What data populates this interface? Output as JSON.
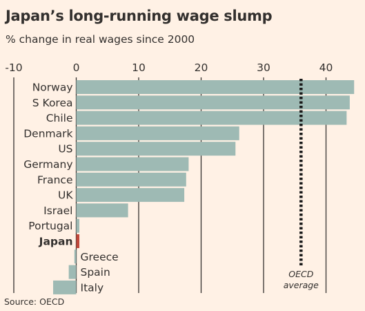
{
  "chart_data": {
    "type": "bar",
    "orientation": "horizontal",
    "title": "Japan’s long-running wage slump",
    "subtitle": "% change in real wages since 2000",
    "source": "Source: OECD",
    "categories": [
      "Norway",
      "S Korea",
      "Chile",
      "Denmark",
      "US",
      "Germany",
      "France",
      "UK",
      "Israel",
      "Portugal",
      "Japan",
      "Greece",
      "Spain",
      "Italy"
    ],
    "values": [
      44.5,
      43.8,
      43.3,
      26.1,
      25.5,
      18.0,
      17.6,
      17.3,
      8.3,
      0.5,
      -0.5,
      -0.3,
      -1.2,
      -3.7
    ],
    "highlight": "Japan",
    "xlim": [
      -10,
      45
    ],
    "xticks": [
      -10,
      0,
      10,
      20,
      30,
      40
    ],
    "grid": true,
    "reference_line": {
      "value": 36,
      "label_lines": [
        "OECD",
        "average"
      ]
    },
    "colors": {
      "bar": "#9ebab4",
      "highlight": "#c0473a",
      "background": "#fff1e5",
      "grid": "#33302e",
      "reference": "#1a1a1a",
      "text": "#33302e"
    }
  }
}
